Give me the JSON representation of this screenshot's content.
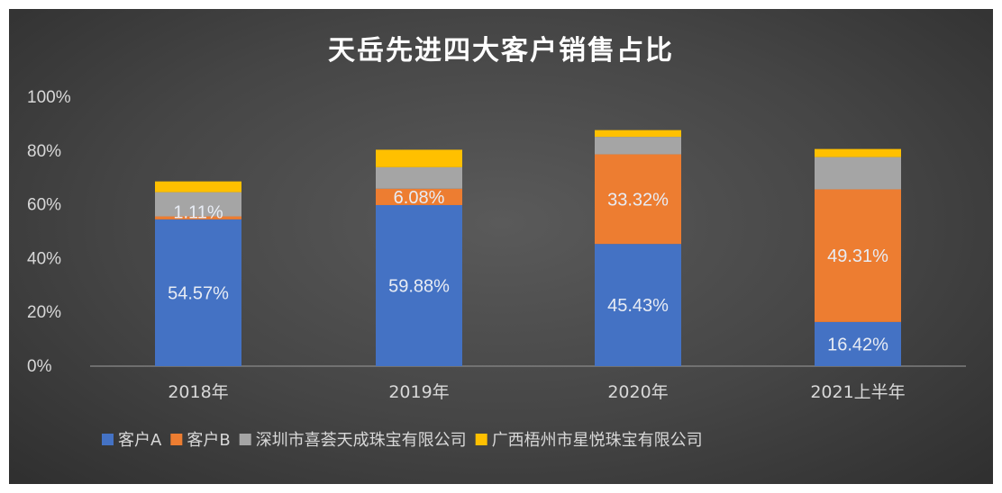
{
  "chart_data": {
    "type": "bar",
    "stacked": true,
    "title": "天岳先进四大客户销售占比",
    "categories": [
      "2018年",
      "2019年",
      "2020年",
      "2021上半年"
    ],
    "series": [
      {
        "name": "客户A",
        "color": "#4472c4",
        "values": [
          54.57,
          59.88,
          45.43,
          16.42
        ],
        "labels": [
          "54.57%",
          "59.88%",
          "45.43%",
          "16.42%"
        ]
      },
      {
        "name": "客户B",
        "color": "#ed7d31",
        "values": [
          1.11,
          6.08,
          33.32,
          49.31
        ],
        "labels": [
          "1.11%",
          "6.08%",
          "33.32%",
          "49.31%"
        ]
      },
      {
        "name": "深圳市喜荟天成珠宝有限公司",
        "color": "#a5a5a5",
        "values": [
          9.0,
          8.0,
          6.5,
          12.0
        ],
        "labels": [
          "",
          "",
          "",
          ""
        ]
      },
      {
        "name": "广西梧州市星悦珠宝有限公司",
        "color": "#ffc000",
        "values": [
          4.0,
          6.5,
          2.5,
          3.0
        ],
        "labels": [
          "",
          "",
          "",
          ""
        ]
      }
    ],
    "yticks": [
      "0%",
      "20%",
      "40%",
      "60%",
      "80%",
      "100%"
    ],
    "ylim": [
      0,
      100
    ],
    "grid": false,
    "legend_position": "bottom"
  }
}
